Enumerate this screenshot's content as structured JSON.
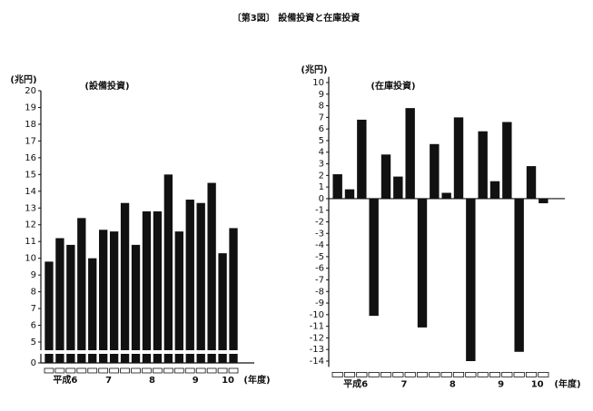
{
  "figure_title": "〔第3図〕 設備投資と在庫投資",
  "chart_data": [
    {
      "type": "bar",
      "subtitle": "(設備投資)",
      "y_unit": "(兆円)",
      "x_label": "(年度)",
      "color": "#111111",
      "axis_break": true,
      "categories": [
        "平成6",
        null,
        null,
        null,
        "7",
        null,
        null,
        null,
        "8",
        null,
        null,
        null,
        "9",
        null,
        null,
        null,
        "10",
        null
      ],
      "values": [
        9.8,
        11.2,
        10.8,
        12.4,
        10.0,
        11.7,
        11.6,
        13.3,
        10.8,
        12.8,
        12.8,
        15.0,
        11.6,
        13.5,
        13.3,
        14.5,
        10.3,
        11.8
      ],
      "ylim": [
        0,
        20
      ],
      "yticks": [
        0,
        5,
        6,
        7,
        8,
        9,
        10,
        11,
        12,
        13,
        14,
        15,
        16,
        17,
        18,
        19,
        20
      ]
    },
    {
      "type": "bar",
      "subtitle": "(在庫投資)",
      "y_unit": "(兆円)",
      "x_label": "(年度)",
      "color": "#111111",
      "axis_break": false,
      "categories": [
        "平成6",
        null,
        null,
        null,
        "7",
        null,
        null,
        null,
        "8",
        null,
        null,
        null,
        "9",
        null,
        null,
        null,
        "10",
        null
      ],
      "values": [
        2.1,
        0.8,
        6.8,
        -10.1,
        3.8,
        1.9,
        7.8,
        -11.1,
        4.7,
        0.5,
        7.0,
        -14.0,
        5.8,
        1.5,
        6.6,
        -13.2,
        2.8,
        -0.4
      ],
      "ylim": [
        -14.5,
        10.5
      ],
      "yticks": [
        -14,
        -13,
        -12,
        -11,
        -10,
        -9,
        -8,
        -7,
        -6,
        -5,
        -4,
        -3,
        -2,
        -1,
        0,
        1,
        2,
        3,
        4,
        5,
        6,
        7,
        8,
        9,
        10
      ]
    }
  ]
}
